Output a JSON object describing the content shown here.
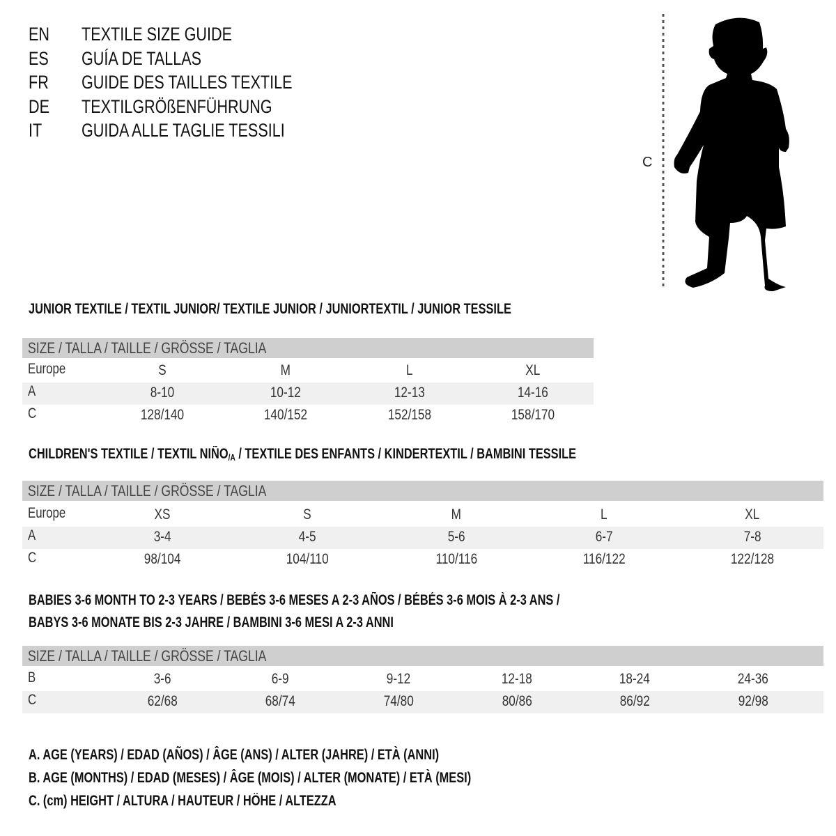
{
  "titles": [
    {
      "lang": "EN",
      "text": "TEXTILE SIZE GUIDE"
    },
    {
      "lang": "ES",
      "text": "GUÍA DE TALLAS"
    },
    {
      "lang": "FR",
      "text": "GUIDE DES TAILLES TEXTILE"
    },
    {
      "lang": "DE",
      "text": "TEXTILGRÖßENFÜHRUNG"
    },
    {
      "lang": "IT",
      "text": "GUIDA ALLE TAGLIE TESSILI"
    }
  ],
  "figure": {
    "measure_label": "C"
  },
  "size_header": "SIZE / TALLA / TAILLE / GRÖSSE / TAGLIA",
  "junior": {
    "heading": "JUNIOR TEXTILE / TEXTIL JUNIOR/ TEXTILE JUNIOR / JUNIORTEXTIL / JUNIOR TESSILE",
    "rows": [
      {
        "label": "Europe",
        "values": [
          "S",
          "M",
          "L",
          "XL"
        ]
      },
      {
        "label": "A",
        "values": [
          "8-10",
          "10-12",
          "12-13",
          "14-16"
        ]
      },
      {
        "label": "C",
        "values": [
          "128/140",
          "140/152",
          "152/158",
          "158/170"
        ]
      }
    ]
  },
  "children": {
    "heading_pre": "CHILDREN'S TEXTILE / TEXTIL NIÑO",
    "heading_sub": "/A",
    "heading_post": " / TEXTILE DES ENFANTS / KINDERTEXTIL / BAMBINI TESSILE",
    "rows": [
      {
        "label": "Europe",
        "values": [
          "XS",
          "S",
          "M",
          "L",
          "XL"
        ]
      },
      {
        "label": "A",
        "values": [
          "3-4",
          "4-5",
          "5-6",
          "6-7",
          "7-8"
        ]
      },
      {
        "label": "C",
        "values": [
          "98/104",
          "104/110",
          "110/116",
          "116/122",
          "122/128"
        ]
      }
    ]
  },
  "babies": {
    "heading_line1": "BABIES 3-6 MONTH TO 2-3 YEARS / BEBÉS 3-6 MESES A 2-3 AÑOS / BÉBÉS 3-6 MOIS À 2-3 ANS /",
    "heading_line2": "BABYS 3-6 MONATE BIS 2-3 JAHRE / BAMBINI 3-6 MESI A 2-3 ANNI",
    "rows": [
      {
        "label": "B",
        "values": [
          "3-6",
          "6-9",
          "9-12",
          "12-18",
          "18-24",
          "24-36"
        ]
      },
      {
        "label": "C",
        "values": [
          "62/68",
          "68/74",
          "74/80",
          "80/86",
          "86/92",
          "92/98"
        ]
      }
    ]
  },
  "legend": [
    "A. AGE (YEARS) / EDAD (AÑOS) / ÂGE (ANS) / ALTER (JAHRE) / ETÀ (ANNI)",
    "B. AGE (MONTHS) / EDAD (MESES) / ÂGE (MOIS) / ALTER (MONATE) / ETÀ (MESI)",
    "C. (cm) HEIGHT / ALTURA / HAUTEUR / HÖHE / ALTEZZA"
  ]
}
